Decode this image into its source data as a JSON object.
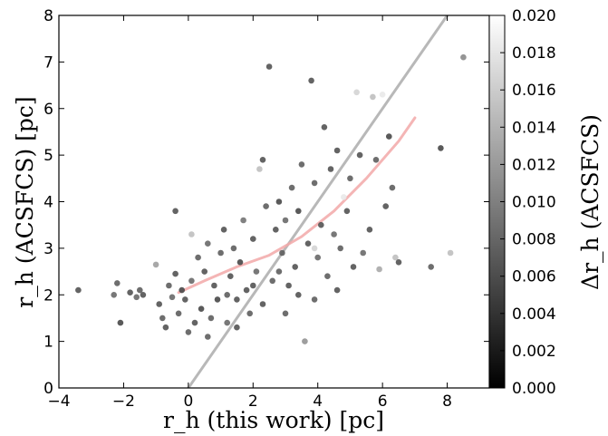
{
  "chart_data": {
    "type": "scatter",
    "xlabel": "r_h (this work) [pc]",
    "ylabel": "r_h (ACSFCS) [pc]",
    "colorbar_label": "Δr_h (ACSFCS)",
    "xlim": [
      -4,
      9.3
    ],
    "ylim": [
      0,
      8
    ],
    "x_ticks": [
      -4,
      -2,
      0,
      2,
      4,
      6,
      8
    ],
    "x_tick_labels": [
      "−4",
      "−2",
      "0",
      "2",
      "4",
      "6",
      "8"
    ],
    "y_ticks": [
      0,
      1,
      2,
      3,
      4,
      5,
      6,
      7,
      8
    ],
    "y_tick_labels": [
      "0",
      "1",
      "2",
      "3",
      "4",
      "5",
      "6",
      "7",
      "8"
    ],
    "colorbar": {
      "range": [
        0.0,
        0.02
      ],
      "ticks": [
        0.0,
        0.002,
        0.004,
        0.006,
        0.008,
        0.01,
        0.012,
        0.014,
        0.016,
        0.018,
        0.02
      ],
      "tick_labels": [
        "0.000",
        "0.002",
        "0.004",
        "0.006",
        "0.008",
        "0.010",
        "0.012",
        "0.014",
        "0.016",
        "0.018",
        "0.020"
      ],
      "colormap": "gray (black = 0.000, white = 0.020)"
    },
    "reference_lines": [
      {
        "kind": "one-to-one",
        "points": [
          [
            0,
            0
          ],
          [
            8,
            8
          ]
        ],
        "color": "#b8b8b8"
      },
      {
        "kind": "trend",
        "points": [
          [
            -0.3,
            2.05
          ],
          [
            0.5,
            2.3
          ],
          [
            1.5,
            2.6
          ],
          [
            2.5,
            2.85
          ],
          [
            3.5,
            3.25
          ],
          [
            4.5,
            3.8
          ],
          [
            5.5,
            4.5
          ],
          [
            6.5,
            5.3
          ],
          [
            7.0,
            5.8
          ]
        ],
        "color": "#f2a8a8"
      }
    ],
    "point_color_range": {
      "dark": "#2a2a2a",
      "light": "#ffffff"
    },
    "points": [
      [
        -3.4,
        2.1,
        0.004
      ],
      [
        -2.3,
        2.0,
        0.006
      ],
      [
        -2.2,
        2.25,
        0.005
      ],
      [
        -2.1,
        1.4,
        0.003
      ],
      [
        -1.8,
        2.05,
        0.004
      ],
      [
        -1.6,
        1.95,
        0.006
      ],
      [
        -1.5,
        2.1,
        0.005
      ],
      [
        -1.4,
        2.0,
        0.004
      ],
      [
        -1.0,
        2.65,
        0.011
      ],
      [
        -0.9,
        1.8,
        0.004
      ],
      [
        -0.8,
        1.5,
        0.005
      ],
      [
        -0.7,
        1.3,
        0.004
      ],
      [
        -0.6,
        2.2,
        0.005
      ],
      [
        -0.5,
        1.95,
        0.006
      ],
      [
        -0.4,
        2.45,
        0.004
      ],
      [
        -0.3,
        1.6,
        0.005
      ],
      [
        -0.2,
        2.1,
        0.003
      ],
      [
        -0.1,
        1.9,
        0.004
      ],
      [
        0.0,
        1.2,
        0.005
      ],
      [
        0.1,
        2.3,
        0.006
      ],
      [
        -0.4,
        3.8,
        0.004
      ],
      [
        0.1,
        3.3,
        0.014
      ],
      [
        0.2,
        1.4,
        0.004
      ],
      [
        0.3,
        2.8,
        0.005
      ],
      [
        0.4,
        1.7,
        0.003
      ],
      [
        0.5,
        2.5,
        0.004
      ],
      [
        0.6,
        3.1,
        0.006
      ],
      [
        0.7,
        1.5,
        0.005
      ],
      [
        0.8,
        2.2,
        0.004
      ],
      [
        0.9,
        1.9,
        0.003
      ],
      [
        1.0,
        2.9,
        0.005
      ],
      [
        1.1,
        3.4,
        0.004
      ],
      [
        1.2,
        1.4,
        0.006
      ],
      [
        1.3,
        2.4,
        0.004
      ],
      [
        1.4,
        3.0,
        0.005
      ],
      [
        1.5,
        1.9,
        0.004
      ],
      [
        1.6,
        2.7,
        0.003
      ],
      [
        1.7,
        3.6,
        0.007
      ],
      [
        1.8,
        2.1,
        0.004
      ],
      [
        1.9,
        1.6,
        0.005
      ],
      [
        2.0,
        3.2,
        0.004
      ],
      [
        2.1,
        2.5,
        0.006
      ],
      [
        2.2,
        4.7,
        0.014
      ],
      [
        2.3,
        1.8,
        0.004
      ],
      [
        2.4,
        3.9,
        0.005
      ],
      [
        2.5,
        6.9,
        0.004
      ],
      [
        2.6,
        2.3,
        0.005
      ],
      [
        2.7,
        3.4,
        0.004
      ],
      [
        2.8,
        4.0,
        0.003
      ],
      [
        2.9,
        2.9,
        0.005
      ],
      [
        3.0,
        3.6,
        0.006
      ],
      [
        3.1,
        2.2,
        0.004
      ],
      [
        3.2,
        4.3,
        0.005
      ],
      [
        3.3,
        2.6,
        0.004
      ],
      [
        3.4,
        3.8,
        0.003
      ],
      [
        3.5,
        4.8,
        0.005
      ],
      [
        3.6,
        1.0,
        0.01
      ],
      [
        3.7,
        3.1,
        0.004
      ],
      [
        3.8,
        6.6,
        0.004
      ],
      [
        3.9,
        4.4,
        0.005
      ],
      [
        4.0,
        2.8,
        0.006
      ],
      [
        4.1,
        3.5,
        0.004
      ],
      [
        4.2,
        5.6,
        0.004
      ],
      [
        4.3,
        2.4,
        0.005
      ],
      [
        4.4,
        4.7,
        0.004
      ],
      [
        4.5,
        3.3,
        0.006
      ],
      [
        4.6,
        2.1,
        0.004
      ],
      [
        4.7,
        3.0,
        0.005
      ],
      [
        4.9,
        3.8,
        0.004
      ],
      [
        5.0,
        4.5,
        0.005
      ],
      [
        5.1,
        2.6,
        0.004
      ],
      [
        5.2,
        6.35,
        0.016
      ],
      [
        5.3,
        5.0,
        0.004
      ],
      [
        5.4,
        2.9,
        0.006
      ],
      [
        5.6,
        3.4,
        0.004
      ],
      [
        5.7,
        6.25,
        0.014
      ],
      [
        5.8,
        4.9,
        0.005
      ],
      [
        5.9,
        2.55,
        0.012
      ],
      [
        6.0,
        6.3,
        0.018
      ],
      [
        6.1,
        3.9,
        0.004
      ],
      [
        6.2,
        5.4,
        0.003
      ],
      [
        6.3,
        4.3,
        0.005
      ],
      [
        6.4,
        2.8,
        0.014
      ],
      [
        6.5,
        2.7,
        0.004
      ],
      [
        1.2,
        2.0,
        0.005
      ],
      [
        2.0,
        2.2,
        0.004
      ],
      [
        2.8,
        2.5,
        0.005
      ],
      [
        3.4,
        2.0,
        0.004
      ],
      [
        3.9,
        1.9,
        0.005
      ],
      [
        1.5,
        1.3,
        0.004
      ],
      [
        0.6,
        1.1,
        0.005
      ],
      [
        3.0,
        1.6,
        0.005
      ],
      [
        7.5,
        2.6,
        0.005
      ],
      [
        7.8,
        5.15,
        0.003
      ],
      [
        8.1,
        2.9,
        0.014
      ],
      [
        8.5,
        7.1,
        0.009
      ],
      [
        4.8,
        4.1,
        0.018
      ],
      [
        3.9,
        3.0,
        0.016
      ],
      [
        4.6,
        5.1,
        0.004
      ],
      [
        2.3,
        4.9,
        0.004
      ]
    ]
  }
}
